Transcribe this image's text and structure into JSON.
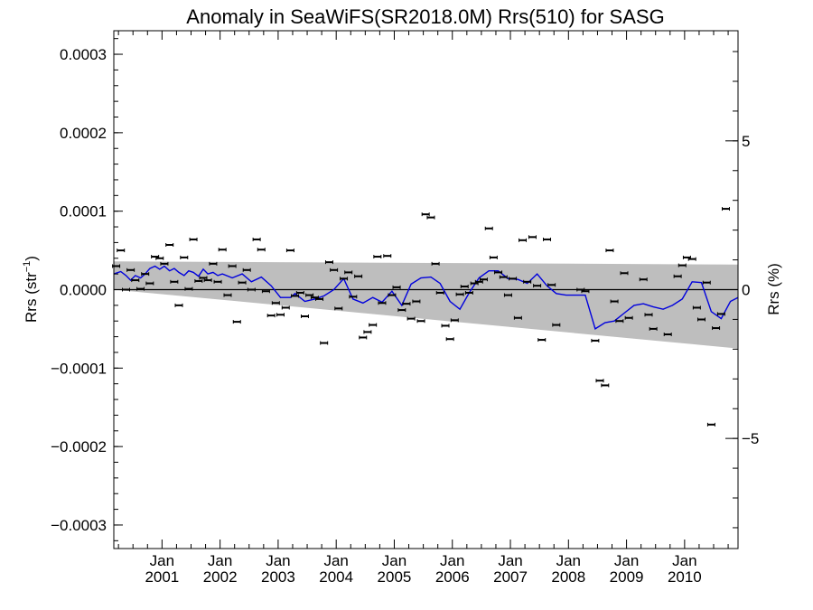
{
  "chart_data": {
    "type": "scatter",
    "title": "Anomaly in SeaWiFS(SR2018.0M) Rrs(510) for SASG",
    "ylabel": "Rrs (str",
    "ylabel_sup": "−1",
    "ylabel_end": ")",
    "y2label": "Rrs (%)",
    "ylim": [
      -0.00033,
      0.00033
    ],
    "y2lim": [
      -8.7,
      8.7
    ],
    "yticks": [
      {
        "value": 0.0003,
        "label": "0.0003"
      },
      {
        "value": 0.0002,
        "label": "0.0002"
      },
      {
        "value": 0.0001,
        "label": "0.0001"
      },
      {
        "value": 0.0,
        "label": "0.0000"
      },
      {
        "value": -0.0001,
        "label": "−0.0001"
      },
      {
        "value": -0.0002,
        "label": "−0.0002"
      },
      {
        "value": -0.0003,
        "label": "−0.0003"
      }
    ],
    "y2ticks": [
      {
        "value": 5,
        "label": "5"
      },
      {
        "value": 0,
        "label": "0"
      },
      {
        "value": -5,
        "label": "−5"
      }
    ],
    "xlim": [
      2000.17,
      2010.92
    ],
    "xticks": [
      {
        "value": 2001.0,
        "month": "Jan",
        "year": "2001"
      },
      {
        "value": 2002.0,
        "month": "Jan",
        "year": "2002"
      },
      {
        "value": 2003.0,
        "month": "Jan",
        "year": "2003"
      },
      {
        "value": 2004.0,
        "month": "Jan",
        "year": "2004"
      },
      {
        "value": 2005.0,
        "month": "Jan",
        "year": "2005"
      },
      {
        "value": 2006.0,
        "month": "Jan",
        "year": "2006"
      },
      {
        "value": 2007.0,
        "month": "Jan",
        "year": "2007"
      },
      {
        "value": 2008.0,
        "month": "Jan",
        "year": "2008"
      },
      {
        "value": 2009.0,
        "month": "Jan",
        "year": "2009"
      },
      {
        "value": 2010.0,
        "month": "Jan",
        "year": "2010"
      }
    ],
    "band": {
      "x": [
        2000.17,
        2010.92
      ],
      "upper": [
        3.6e-05,
        3.2e-05
      ],
      "lower": [
        0.0,
        -7.5e-05
      ]
    },
    "points": [
      [
        2000.21,
        3e-05
      ],
      [
        2000.29,
        5e-05
      ],
      [
        2000.38,
        0.0
      ],
      [
        2000.46,
        2.5e-05
      ],
      [
        2000.54,
        1.2e-05
      ],
      [
        2000.63,
        1e-06
      ],
      [
        2000.71,
        2e-05
      ],
      [
        2000.79,
        8e-06
      ],
      [
        2000.88,
        4.2e-05
      ],
      [
        2000.96,
        4e-05
      ],
      [
        2001.04,
        3.3e-05
      ],
      [
        2001.13,
        5.7e-05
      ],
      [
        2001.21,
        1e-05
      ],
      [
        2001.29,
        -2e-05
      ],
      [
        2001.38,
        4.1e-05
      ],
      [
        2001.46,
        1e-06
      ],
      [
        2001.54,
        6.4e-05
      ],
      [
        2001.63,
        1.1e-05
      ],
      [
        2001.71,
        1.5e-05
      ],
      [
        2001.79,
        1.2e-05
      ],
      [
        2001.88,
        3.3e-05
      ],
      [
        2001.96,
        1e-05
      ],
      [
        2002.04,
        5.1e-05
      ],
      [
        2002.13,
        -7e-06
      ],
      [
        2002.21,
        3e-05
      ],
      [
        2002.29,
        -4.1e-05
      ],
      [
        2002.38,
        9e-06
      ],
      [
        2002.46,
        2.5e-05
      ],
      [
        2002.54,
        0.0
      ],
      [
        2002.63,
        6.4e-05
      ],
      [
        2002.71,
        5.1e-05
      ],
      [
        2002.79,
        -2e-06
      ],
      [
        2002.88,
        -3.3e-05
      ],
      [
        2002.96,
        -1.7e-05
      ],
      [
        2003.04,
        -3.2e-05
      ],
      [
        2003.13,
        -2.3e-05
      ],
      [
        2003.21,
        5e-05
      ],
      [
        2003.29,
        -8e-06
      ],
      [
        2003.38,
        -4e-06
      ],
      [
        2003.46,
        -3.4e-05
      ],
      [
        2003.54,
        -7e-06
      ],
      [
        2003.63,
        -1e-05
      ],
      [
        2003.71,
        -1.2e-05
      ],
      [
        2003.79,
        -6.8e-05
      ],
      [
        2003.88,
        3.5e-05
      ],
      [
        2003.96,
        2.5e-05
      ],
      [
        2004.04,
        -2.4e-05
      ],
      [
        2004.13,
        1.4e-05
      ],
      [
        2004.21,
        2.2e-05
      ],
      [
        2004.29,
        -9e-06
      ],
      [
        2004.38,
        1.7e-05
      ],
      [
        2004.46,
        -6.1e-05
      ],
      [
        2004.54,
        -5.4e-05
      ],
      [
        2004.63,
        -4.5e-05
      ],
      [
        2004.71,
        4.2e-05
      ],
      [
        2004.79,
        -1.7e-05
      ],
      [
        2004.88,
        4.3e-05
      ],
      [
        2004.96,
        -7e-06
      ],
      [
        2005.04,
        3e-06
      ],
      [
        2005.13,
        -2.6e-05
      ],
      [
        2005.21,
        -1.8e-05
      ],
      [
        2005.29,
        -3.7e-05
      ],
      [
        2005.38,
        -1.5e-05
      ],
      [
        2005.46,
        -4e-05
      ],
      [
        2005.54,
        9.6e-05
      ],
      [
        2005.63,
        9.2e-05
      ],
      [
        2005.71,
        3.3e-05
      ],
      [
        2005.79,
        -4e-06
      ],
      [
        2005.88,
        -4.6e-05
      ],
      [
        2005.96,
        -6.3e-05
      ],
      [
        2006.04,
        -3.9e-05
      ],
      [
        2006.13,
        -6e-06
      ],
      [
        2006.21,
        4e-06
      ],
      [
        2006.29,
        -4e-06
      ],
      [
        2006.38,
        8e-06
      ],
      [
        2006.46,
        1e-05
      ],
      [
        2006.54,
        1.3e-05
      ],
      [
        2006.63,
        7.8e-05
      ],
      [
        2006.71,
        4.1e-05
      ],
      [
        2006.79,
        2.2e-05
      ],
      [
        2006.88,
        1.6e-05
      ],
      [
        2006.96,
        -7e-06
      ],
      [
        2007.04,
        1.4e-05
      ],
      [
        2007.13,
        -3.6e-05
      ],
      [
        2007.21,
        6.3e-05
      ],
      [
        2007.29,
        1e-05
      ],
      [
        2007.38,
        6.7e-05
      ],
      [
        2007.46,
        5e-06
      ],
      [
        2007.54,
        -6.4e-05
      ],
      [
        2007.63,
        6.4e-05
      ],
      [
        2007.71,
        6e-06
      ],
      [
        2007.79,
        -4.5e-05
      ],
      [
        2008.21,
        0.0
      ],
      [
        2008.29,
        -2e-06
      ],
      [
        2008.46,
        -6.5e-05
      ],
      [
        2008.54,
        -0.000116
      ],
      [
        2008.63,
        -0.000122
      ],
      [
        2008.71,
        5e-05
      ],
      [
        2008.79,
        -1.5e-05
      ],
      [
        2008.88,
        -4e-05
      ],
      [
        2008.96,
        2.1e-05
      ],
      [
        2009.04,
        -3.6e-05
      ],
      [
        2009.29,
        1.3e-05
      ],
      [
        2009.38,
        -3.2e-05
      ],
      [
        2009.46,
        -5e-05
      ],
      [
        2009.71,
        -5.7e-05
      ],
      [
        2009.88,
        1.7e-05
      ],
      [
        2009.96,
        3.1e-05
      ],
      [
        2010.04,
        4.1e-05
      ],
      [
        2010.13,
        3.9e-05
      ],
      [
        2010.21,
        -2.3e-05
      ],
      [
        2010.29,
        -3.8e-05
      ],
      [
        2010.38,
        9e-06
      ],
      [
        2010.46,
        -0.000172
      ],
      [
        2010.54,
        -4.9e-05
      ],
      [
        2010.63,
        -3.1e-05
      ],
      [
        2010.71,
        0.000103
      ]
    ],
    "line": {
      "x": [
        2000.17,
        2000.29,
        2000.38,
        2000.46,
        2000.54,
        2000.63,
        2000.71,
        2000.79,
        2000.88,
        2000.96,
        2001.04,
        2001.13,
        2001.21,
        2001.29,
        2001.38,
        2001.46,
        2001.54,
        2001.63,
        2001.71,
        2001.79,
        2001.88,
        2001.96,
        2002.04,
        2002.21,
        2002.38,
        2002.54,
        2002.71,
        2002.88,
        2003.04,
        2003.21,
        2003.29,
        2003.46,
        2003.63,
        2003.79,
        2003.96,
        2004.13,
        2004.29,
        2004.46,
        2004.63,
        2004.79,
        2004.96,
        2005.13,
        2005.29,
        2005.46,
        2005.63,
        2005.79,
        2005.96,
        2006.13,
        2006.29,
        2006.46,
        2006.63,
        2006.79,
        2006.96,
        2007.13,
        2007.29,
        2007.46,
        2007.63,
        2007.79,
        2007.96,
        2008.13,
        2008.29,
        2008.46,
        2008.63,
        2008.79,
        2008.96,
        2009.13,
        2009.29,
        2009.46,
        2009.63,
        2009.79,
        2009.96,
        2010.13,
        2010.29,
        2010.46,
        2010.63,
        2010.79,
        2010.92
      ],
      "y": [
        2e-05,
        2.3e-05,
        1.8e-05,
        1.2e-05,
        1.8e-05,
        1.5e-05,
        2e-05,
        2.7e-05,
        3e-05,
        2.6e-05,
        3e-05,
        2.4e-05,
        2.7e-05,
        2.2e-05,
        1.8e-05,
        2.4e-05,
        2.2e-05,
        1.7e-05,
        2.6e-05,
        2e-05,
        2.2e-05,
        1.8e-05,
        2e-05,
        1.5e-05,
        2e-05,
        1e-05,
        1.6e-05,
        5e-06,
        -1e-05,
        -1e-05,
        -5e-06,
        -1.5e-05,
        -1.2e-05,
        -8e-06,
        0.0,
        1.4e-05,
        -1.2e-05,
        -1.7e-05,
        -1e-05,
        -1.6e-05,
        -2e-06,
        -2e-05,
        7e-06,
        1.5e-05,
        1.6e-05,
        8e-06,
        -1.5e-05,
        -2.5e-05,
        -4e-06,
        1.5e-05,
        2.4e-05,
        2.4e-05,
        1.4e-05,
        1.3e-05,
        8e-06,
        2e-05,
        5e-06,
        -5e-06,
        -7e-06,
        -7e-06,
        -7e-06,
        -5e-05,
        -4.2e-05,
        -4e-05,
        -3e-05,
        -2e-05,
        -1.8e-05,
        -2.2e-05,
        -2.5e-05,
        -2e-05,
        -1.2e-05,
        1e-05,
        9e-06,
        -2.8e-05,
        -3.7e-05,
        -1.5e-05,
        -1e-05
      ]
    },
    "colors": {
      "band": "#bebebe",
      "line": "#0000dd",
      "points": "#000000",
      "zero_line": "#000000",
      "axes": "#000000"
    }
  }
}
